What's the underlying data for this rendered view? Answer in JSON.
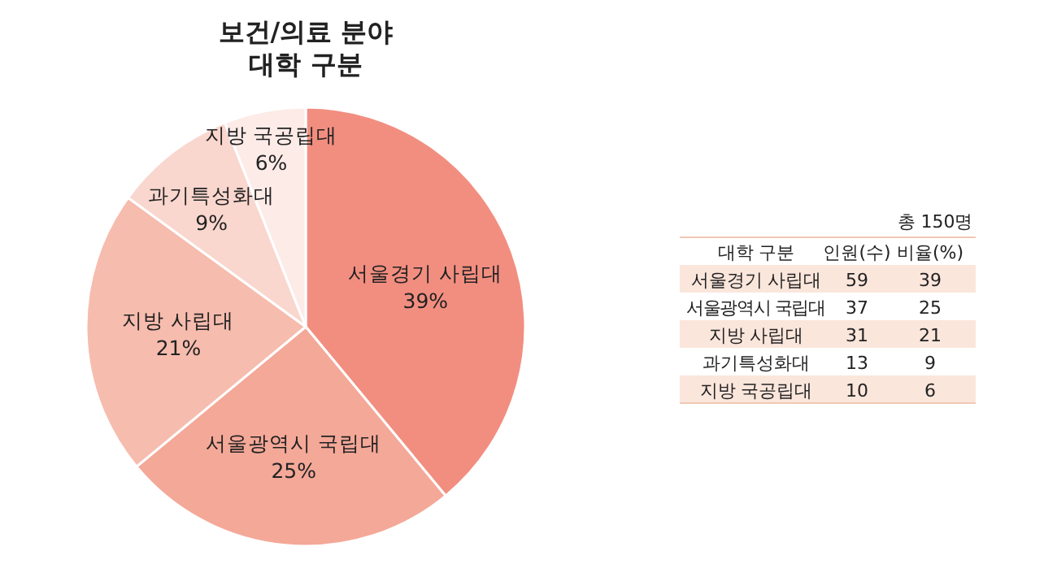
{
  "chart_data": [
    {
      "type": "pie",
      "title": "보건/의료 분야\n대학 구분",
      "categories": [
        "서울경기 사립대",
        "서울광역시 국립대",
        "지방 사립대",
        "과기특성화대",
        "지방 국공립대"
      ],
      "values": [
        39,
        25,
        21,
        9,
        6
      ],
      "colors": [
        "#f28e80",
        "#f4a898",
        "#f6bcae",
        "#f9d7ce",
        "#fcebe7"
      ],
      "value_labels": [
        "39%",
        "25%",
        "21%",
        "9%",
        "6%"
      ]
    },
    {
      "type": "other",
      "legend_title": "대학 구분",
      "annotations": [
        "총 150명"
      ],
      "categories": [
        "서울경기 사립대",
        "서울광역시 국립대",
        "지방 사립대",
        "과기특성화대",
        "지방 국공립대"
      ],
      "series": [
        {
          "name": "인원(수)",
          "values": [
            59,
            37,
            31,
            13,
            10
          ]
        },
        {
          "name": "비율(%)",
          "values": [
            39,
            25,
            21,
            9,
            6
          ]
        }
      ],
      "data_labels": true
    }
  ]
}
